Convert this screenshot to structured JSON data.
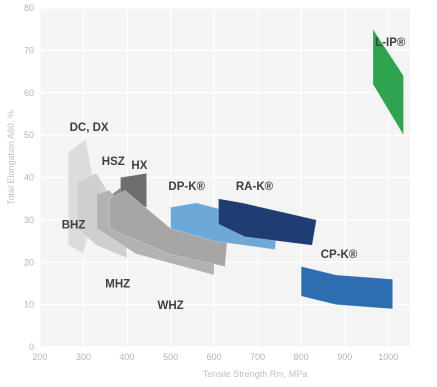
{
  "chart_data": {
    "type": "area",
    "title": "",
    "xlabel": "Tensile Strength Rm, MPa",
    "ylabel": "Total Elongation A80, %",
    "xlim": [
      200,
      1050
    ],
    "ylim": [
      0,
      80
    ],
    "x_ticks": [
      "200",
      "300",
      "400",
      "500",
      "600",
      "700",
      "800",
      "900",
      "1000"
    ],
    "y_ticks": [
      "0",
      "10",
      "20",
      "30",
      "40",
      "50",
      "60",
      "70",
      "80"
    ],
    "grid": true,
    "regions": [
      {
        "name": "DC, DX",
        "color": "#dcdcdc",
        "polygon": [
          [
            265,
            46
          ],
          [
            305,
            49
          ],
          [
            330,
            35
          ],
          [
            300,
            22
          ],
          [
            265,
            24
          ]
        ]
      },
      {
        "name": "BHZ",
        "color": "#cfcfcf",
        "polygon": [
          [
            285,
            39
          ],
          [
            330,
            41
          ],
          [
            395,
            30
          ],
          [
            400,
            21
          ],
          [
            330,
            24
          ],
          [
            285,
            28
          ]
        ]
      },
      {
        "name": "HSZ",
        "color": "#8c8c8c",
        "polygon": [
          [
            340,
            34
          ],
          [
            390,
            38
          ],
          [
            405,
            31
          ],
          [
            360,
            28
          ]
        ]
      },
      {
        "name": "HX",
        "color": "#6e6e6e",
        "polygon": [
          [
            385,
            40
          ],
          [
            445,
            41
          ],
          [
            445,
            33
          ],
          [
            385,
            33
          ]
        ]
      },
      {
        "name": "MHZ",
        "color": "#b2b2b2",
        "polygon": [
          [
            330,
            36
          ],
          [
            360,
            37
          ],
          [
            420,
            28
          ],
          [
            600,
            22
          ],
          [
            600,
            17
          ],
          [
            420,
            22
          ],
          [
            330,
            28
          ]
        ]
      },
      {
        "name": "WHZ",
        "color": "#a6a6a6",
        "polygon": [
          [
            360,
            35
          ],
          [
            395,
            37
          ],
          [
            500,
            28
          ],
          [
            630,
            25
          ],
          [
            625,
            19
          ],
          [
            495,
            22
          ],
          [
            360,
            28
          ]
        ]
      },
      {
        "name": "DP-K®",
        "color": "#6ea8d9",
        "polygon": [
          [
            500,
            33
          ],
          [
            560,
            34
          ],
          [
            745,
            29
          ],
          [
            740,
            23
          ],
          [
            600,
            25
          ],
          [
            500,
            28
          ]
        ]
      },
      {
        "name": "RA-K®",
        "color": "#1e3d72",
        "polygon": [
          [
            610,
            35
          ],
          [
            665,
            34
          ],
          [
            835,
            30
          ],
          [
            825,
            24
          ],
          [
            670,
            26
          ],
          [
            610,
            29
          ]
        ]
      },
      {
        "name": "CP-K®",
        "color": "#2e6eb0",
        "polygon": [
          [
            800,
            19
          ],
          [
            880,
            17
          ],
          [
            1010,
            16
          ],
          [
            1010,
            9
          ],
          [
            880,
            10
          ],
          [
            800,
            12
          ]
        ]
      },
      {
        "name": "L-IP®",
        "color": "#2ea44f",
        "polygon": [
          [
            965,
            75
          ],
          [
            1035,
            64
          ],
          [
            1035,
            50
          ],
          [
            965,
            62
          ]
        ]
      }
    ],
    "annotations": [
      {
        "text": "DC, DX",
        "x": 268,
        "y": 51
      },
      {
        "text": "BHZ",
        "x": 250,
        "y": 28
      },
      {
        "text": "HSZ",
        "x": 342,
        "y": 43
      },
      {
        "text": "HX",
        "x": 410,
        "y": 42
      },
      {
        "text": "DP-K®",
        "x": 495,
        "y": 37
      },
      {
        "text": "RA-K®",
        "x": 650,
        "y": 37
      },
      {
        "text": "MHZ",
        "x": 350,
        "y": 14
      },
      {
        "text": "WHZ",
        "x": 470,
        "y": 9
      },
      {
        "text": "CP-K®",
        "x": 845,
        "y": 21
      },
      {
        "text": "L-IP®",
        "x": 970,
        "y": 71
      }
    ]
  }
}
